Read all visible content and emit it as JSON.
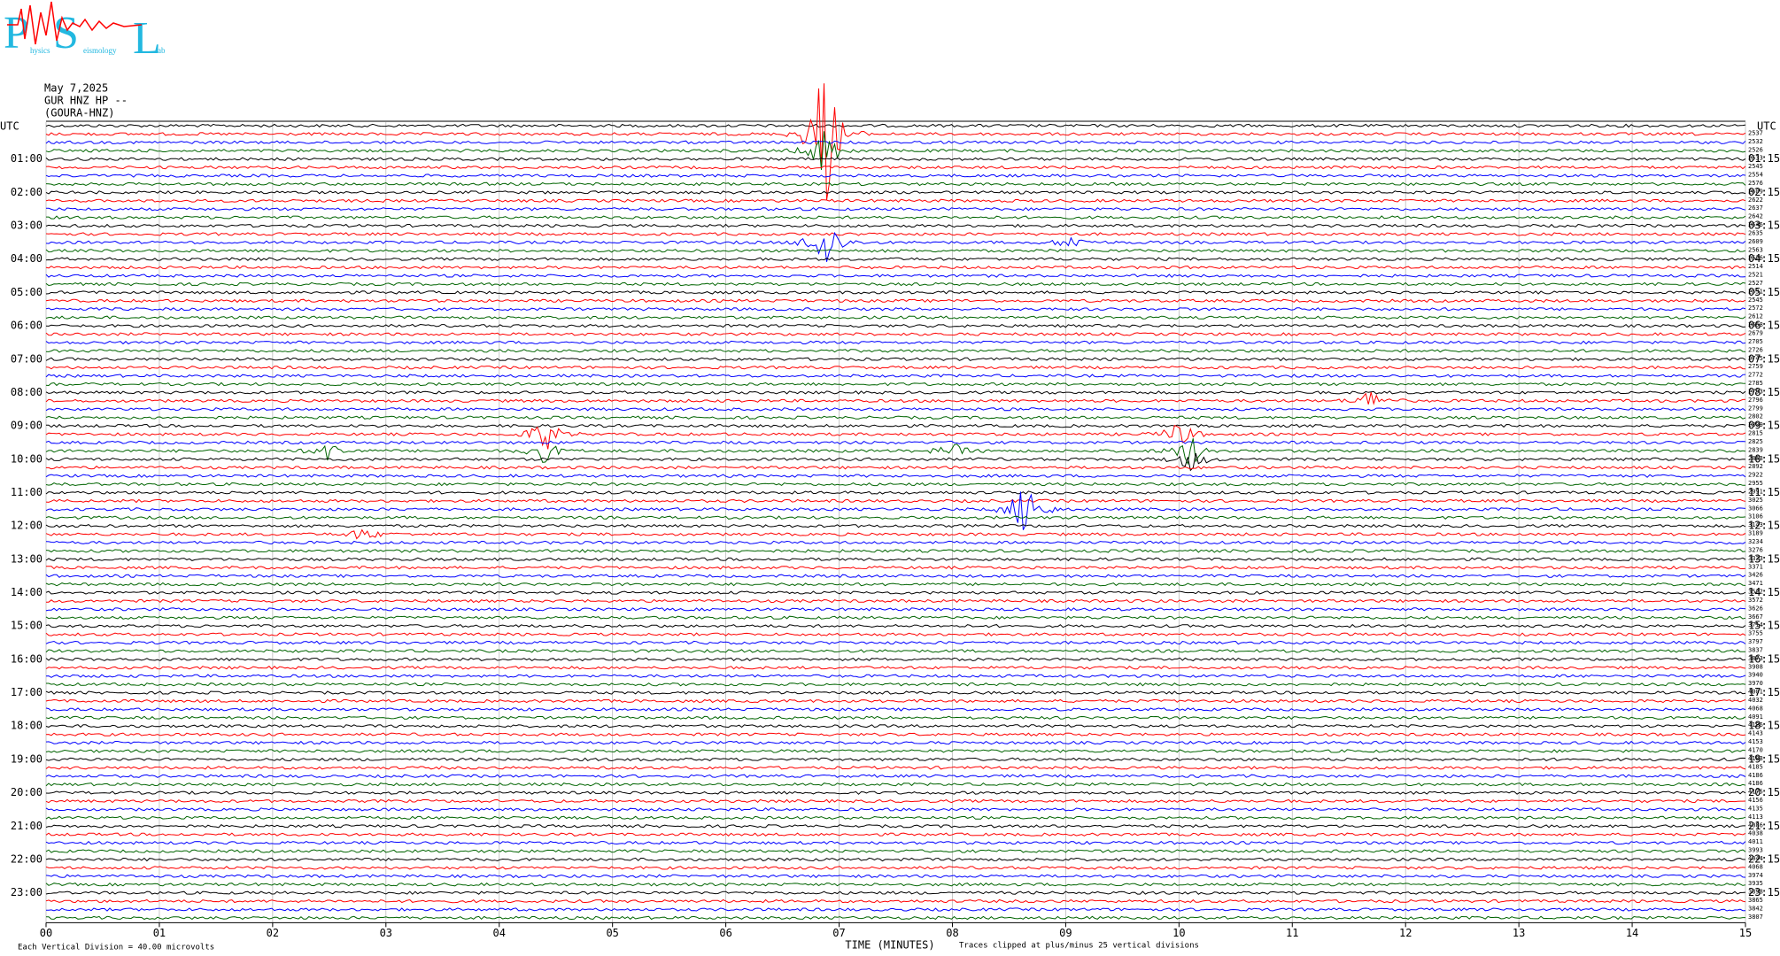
{
  "chart_data": {
    "type": "helicorder",
    "logo": {
      "letters": [
        "P",
        "S",
        "L"
      ],
      "words": [
        "hysics",
        "eismology",
        "ab"
      ]
    },
    "date": "May 7,2025",
    "channel": "GUR HNZ HP --",
    "station": "(GOURA-HNZ)",
    "utc_left": "UTC",
    "utc_right": "UTC",
    "left_labels": [
      "01:00",
      "02:00",
      "03:00",
      "04:00",
      "05:00",
      "06:00",
      "07:00",
      "08:00",
      "09:00",
      "10:00",
      "11:00",
      "12:00",
      "13:00",
      "14:00",
      "15:00",
      "16:00",
      "17:00",
      "18:00",
      "19:00",
      "20:00",
      "21:00",
      "22:00",
      "23:00"
    ],
    "right_labels": [
      "01:15",
      "02:15",
      "03:15",
      "04:15",
      "05:15",
      "06:15",
      "07:15",
      "08:15",
      "09:15",
      "10:15",
      "11:15",
      "12:15",
      "13:15",
      "14:15",
      "15:15",
      "16:15",
      "17:15",
      "18:15",
      "19:15",
      "20:15",
      "21:15",
      "22:15",
      "23:15"
    ],
    "right_numbers": [
      2537,
      2532,
      2526,
      2533,
      2545,
      2554,
      2576,
      2609,
      2622,
      2637,
      2642,
      2646,
      2635,
      2609,
      2563,
      2526,
      2514,
      2521,
      2527,
      2531,
      2545,
      2572,
      2612,
      2658,
      2679,
      2705,
      2726,
      2745,
      2759,
      2772,
      2785,
      2793,
      2796,
      2799,
      2802,
      2809,
      2815,
      2825,
      2839,
      2863,
      2892,
      2922,
      2955,
      2991,
      3025,
      3066,
      3106,
      3143,
      3189,
      3234,
      3276,
      3323,
      3371,
      3426,
      3471,
      3522,
      3572,
      3626,
      3667,
      3714,
      3755,
      3797,
      3837,
      3873,
      3908,
      3940,
      3970,
      4001,
      4032,
      4068,
      4091,
      4126,
      4143,
      4153,
      4170,
      4183,
      4185,
      4186,
      4186,
      4175,
      4156,
      4135,
      4113,
      4086,
      4038,
      4011,
      3993,
      4044,
      4068,
      3974,
      3935,
      3898,
      3865,
      3842,
      3807
    ],
    "trace_colors": [
      "#000000",
      "#ff0000",
      "#0000ff",
      "#006400"
    ],
    "xlim": [
      0,
      15
    ],
    "xticks": [
      {
        "value": 0,
        "label": "00"
      },
      {
        "value": 1,
        "label": "01"
      },
      {
        "value": 2,
        "label": "02"
      },
      {
        "value": 3,
        "label": "03"
      },
      {
        "value": 4,
        "label": "04"
      },
      {
        "value": 5,
        "label": "05"
      },
      {
        "value": 6,
        "label": "06"
      },
      {
        "value": 7,
        "label": "07"
      },
      {
        "value": 8,
        "label": "08"
      },
      {
        "value": 9,
        "label": "09"
      },
      {
        "value": 10,
        "label": "10"
      },
      {
        "value": 11,
        "label": "11"
      },
      {
        "value": 12,
        "label": "12"
      },
      {
        "value": 13,
        "label": "13"
      },
      {
        "value": 14,
        "label": "14"
      },
      {
        "value": 15,
        "label": "15"
      }
    ],
    "x_label": "TIME (MINUTES)",
    "footer_left": "Each Vertical Division =   40.00 microvolts",
    "footer_right": "Traces clipped at plus/minus 25 vertical divisions",
    "grid": true
  }
}
